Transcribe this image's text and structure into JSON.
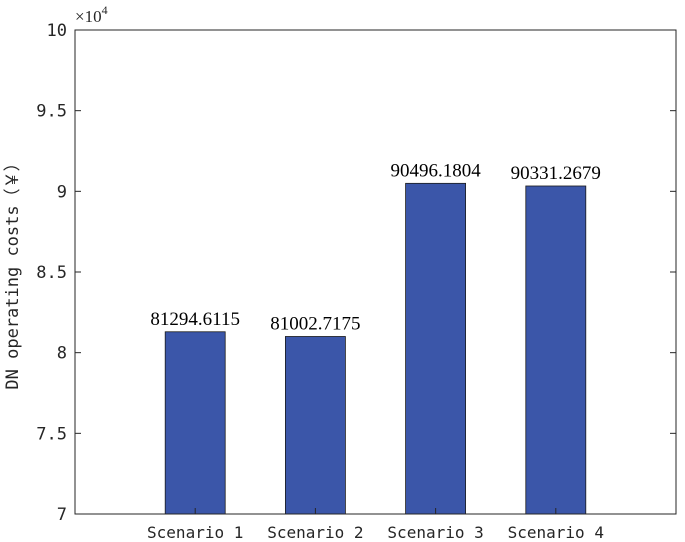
{
  "chart_data": {
    "type": "bar",
    "categories": [
      "Scenario 1",
      "Scenario 2",
      "Scenario 3",
      "Scenario 4"
    ],
    "values": [
      81294.6115,
      81002.7175,
      90496.1804,
      90331.2679
    ],
    "data_labels": [
      "81294.6115",
      "81002.7175",
      "90496.1804",
      "90331.2679"
    ],
    "ylabel": "DN operating costs（￥）",
    "ylim": [
      70000,
      100000
    ],
    "yticks": [
      70000,
      75000,
      80000,
      85000,
      90000,
      95000,
      100000
    ],
    "ytick_labels": [
      "7",
      "7.5",
      "8",
      "8.5",
      "9",
      "9.5",
      "10"
    ],
    "y_multiplier": {
      "base": "×10",
      "exponent": "4"
    },
    "bar_color": "#3b56a9",
    "grid": false,
    "legend": "none"
  }
}
